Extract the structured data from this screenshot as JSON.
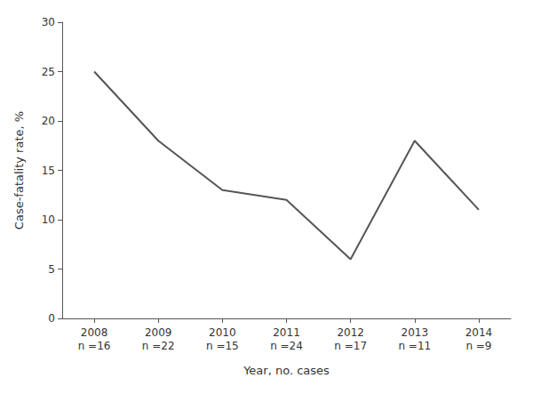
{
  "chart_data": {
    "type": "line",
    "categories": [
      "2008\nn =16",
      "2009\nn =22",
      "2010\nn =15",
      "2011\nn =24",
      "2012\nn =17",
      "2013\nn =11",
      "2014\nn =9"
    ],
    "values": [
      25.0,
      18.0,
      13.0,
      12.0,
      6.0,
      18.0,
      11.0
    ],
    "color": "#555555",
    "xlabel": "Year, no. cases",
    "ylabel": "Case-fatality rate, %",
    "ylim": [
      0,
      30
    ],
    "yticks": [
      0,
      5,
      10,
      15,
      20,
      25,
      30
    ],
    "grid": false
  }
}
